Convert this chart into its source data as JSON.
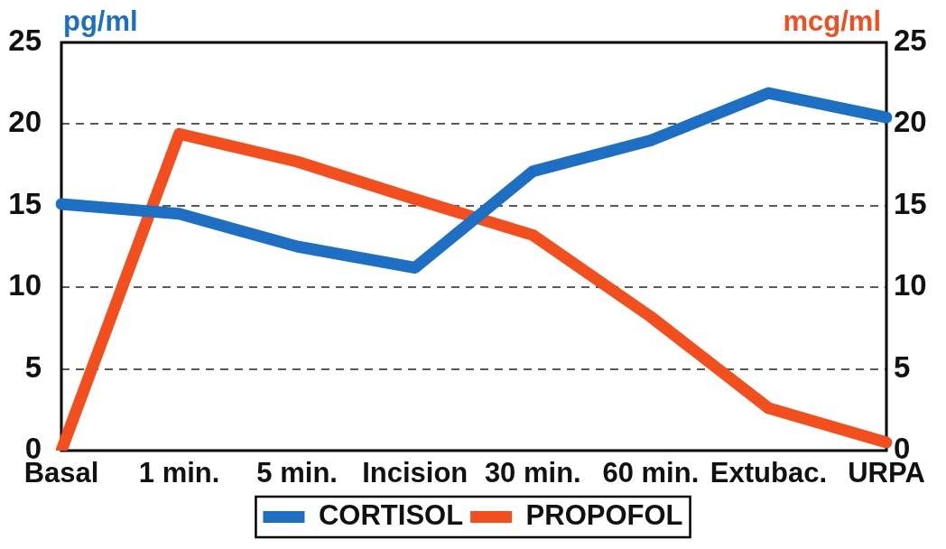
{
  "chart_data": {
    "type": "line",
    "categories": [
      "Basal",
      "1 min.",
      "5 min.",
      "Incision",
      "30 min.",
      "60 min.",
      "Extubac.",
      "URPA"
    ],
    "series": [
      {
        "name": "CORTISOL",
        "color": "#1c6fc2",
        "values": [
          15.1,
          14.5,
          12.5,
          11.2,
          17.1,
          19.0,
          21.9,
          20.4
        ]
      },
      {
        "name": "PROPOFOL",
        "color": "#f34f1e",
        "axis": "y2",
        "values": [
          0,
          19.4,
          17.7,
          15.4,
          13.2,
          8.2,
          2.6,
          0.5
        ]
      }
    ],
    "ylabel": "pg/ml",
    "y2label": "mcg/ml",
    "ylim": [
      0,
      25
    ],
    "yticks": [
      0,
      5,
      10,
      15,
      20,
      25
    ],
    "y2lim": [
      0,
      25
    ],
    "y2ticks": [
      0,
      5,
      10,
      15,
      20,
      25
    ],
    "grid": "y",
    "legend": "bottom"
  }
}
